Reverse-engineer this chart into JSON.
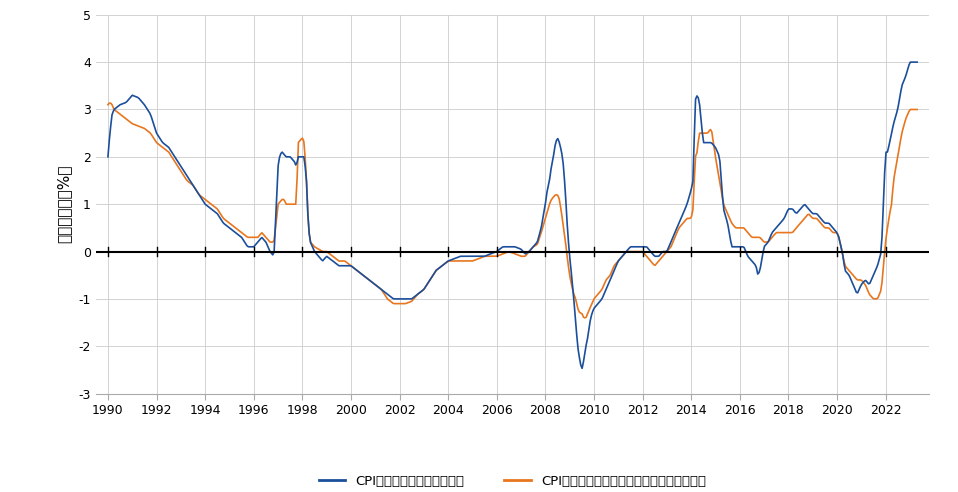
{
  "ylabel": "インフレ率（%）",
  "ylim": [
    -3,
    5
  ],
  "yticks": [
    -3,
    -2,
    -1,
    0,
    1,
    2,
    3,
    4,
    5
  ],
  "xticks": [
    1990,
    1992,
    1994,
    1996,
    1998,
    2000,
    2002,
    2004,
    2006,
    2008,
    2010,
    2012,
    2014,
    2016,
    2018,
    2020,
    2022
  ],
  "color_blue": "#1B4F9B",
  "color_orange": "#E8761E",
  "legend_blue": "CPI除く生鮮食品（前年比）",
  "legend_orange": "CPI除く生鮮食品及びエネルギー（前年比）",
  "background_color": "#FFFFFF",
  "grid_color": "#CCCCCC",
  "linewidth": 1.2,
  "ctrl_blue": [
    [
      1990.0,
      2.0
    ],
    [
      1990.08,
      2.5
    ],
    [
      1990.17,
      2.9
    ],
    [
      1990.25,
      3.0
    ],
    [
      1990.5,
      3.1
    ],
    [
      1990.75,
      3.15
    ],
    [
      1991.0,
      3.3
    ],
    [
      1991.25,
      3.25
    ],
    [
      1991.5,
      3.1
    ],
    [
      1991.75,
      2.9
    ],
    [
      1992.0,
      2.5
    ],
    [
      1992.25,
      2.3
    ],
    [
      1992.5,
      2.2
    ],
    [
      1992.75,
      2.0
    ],
    [
      1993.0,
      1.8
    ],
    [
      1993.25,
      1.6
    ],
    [
      1993.5,
      1.4
    ],
    [
      1993.75,
      1.2
    ],
    [
      1994.0,
      1.0
    ],
    [
      1994.25,
      0.9
    ],
    [
      1994.5,
      0.8
    ],
    [
      1994.75,
      0.6
    ],
    [
      1995.0,
      0.5
    ],
    [
      1995.25,
      0.4
    ],
    [
      1995.5,
      0.3
    ],
    [
      1995.75,
      0.1
    ],
    [
      1996.0,
      0.1
    ],
    [
      1996.17,
      0.2
    ],
    [
      1996.33,
      0.3
    ],
    [
      1996.5,
      0.2
    ],
    [
      1996.67,
      0.0
    ],
    [
      1996.83,
      -0.1
    ],
    [
      1997.0,
      1.8
    ],
    [
      1997.08,
      2.05
    ],
    [
      1997.17,
      2.1
    ],
    [
      1997.25,
      2.05
    ],
    [
      1997.33,
      2.0
    ],
    [
      1997.5,
      2.0
    ],
    [
      1997.67,
      1.9
    ],
    [
      1997.75,
      1.8
    ],
    [
      1997.83,
      2.0
    ],
    [
      1998.0,
      2.0
    ],
    [
      1998.08,
      2.0
    ],
    [
      1998.17,
      1.5
    ],
    [
      1998.25,
      0.5
    ],
    [
      1998.33,
      0.2
    ],
    [
      1998.5,
      0.0
    ],
    [
      1998.67,
      -0.1
    ],
    [
      1998.83,
      -0.2
    ],
    [
      1999.0,
      -0.1
    ],
    [
      1999.25,
      -0.2
    ],
    [
      1999.5,
      -0.3
    ],
    [
      1999.75,
      -0.3
    ],
    [
      2000.0,
      -0.3
    ],
    [
      2000.25,
      -0.4
    ],
    [
      2000.5,
      -0.5
    ],
    [
      2000.75,
      -0.6
    ],
    [
      2001.0,
      -0.7
    ],
    [
      2001.25,
      -0.8
    ],
    [
      2001.5,
      -0.9
    ],
    [
      2001.75,
      -1.0
    ],
    [
      2002.0,
      -1.0
    ],
    [
      2002.25,
      -1.0
    ],
    [
      2002.5,
      -1.0
    ],
    [
      2002.75,
      -0.9
    ],
    [
      2003.0,
      -0.8
    ],
    [
      2003.25,
      -0.6
    ],
    [
      2003.5,
      -0.4
    ],
    [
      2003.75,
      -0.3
    ],
    [
      2004.0,
      -0.2
    ],
    [
      2004.25,
      -0.15
    ],
    [
      2004.5,
      -0.1
    ],
    [
      2004.75,
      -0.1
    ],
    [
      2005.0,
      -0.1
    ],
    [
      2005.25,
      -0.1
    ],
    [
      2005.5,
      -0.1
    ],
    [
      2005.75,
      -0.05
    ],
    [
      2006.0,
      0.0
    ],
    [
      2006.25,
      0.1
    ],
    [
      2006.5,
      0.1
    ],
    [
      2006.75,
      0.1
    ],
    [
      2007.0,
      0.05
    ],
    [
      2007.17,
      -0.05
    ],
    [
      2007.33,
      0.0
    ],
    [
      2007.5,
      0.1
    ],
    [
      2007.67,
      0.2
    ],
    [
      2007.83,
      0.5
    ],
    [
      2008.0,
      1.0
    ],
    [
      2008.08,
      1.3
    ],
    [
      2008.17,
      1.5
    ],
    [
      2008.25,
      1.8
    ],
    [
      2008.33,
      2.0
    ],
    [
      2008.42,
      2.3
    ],
    [
      2008.5,
      2.4
    ],
    [
      2008.58,
      2.3
    ],
    [
      2008.67,
      2.1
    ],
    [
      2008.75,
      1.8
    ],
    [
      2008.83,
      1.2
    ],
    [
      2008.92,
      0.4
    ],
    [
      2009.0,
      -0.1
    ],
    [
      2009.08,
      -0.5
    ],
    [
      2009.17,
      -1.0
    ],
    [
      2009.25,
      -1.5
    ],
    [
      2009.33,
      -2.0
    ],
    [
      2009.42,
      -2.3
    ],
    [
      2009.5,
      -2.5
    ],
    [
      2009.58,
      -2.3
    ],
    [
      2009.67,
      -2.0
    ],
    [
      2009.75,
      -1.8
    ],
    [
      2009.83,
      -1.5
    ],
    [
      2009.92,
      -1.3
    ],
    [
      2010.0,
      -1.2
    ],
    [
      2010.17,
      -1.1
    ],
    [
      2010.33,
      -1.0
    ],
    [
      2010.5,
      -0.8
    ],
    [
      2010.67,
      -0.6
    ],
    [
      2010.83,
      -0.4
    ],
    [
      2011.0,
      -0.2
    ],
    [
      2011.17,
      -0.1
    ],
    [
      2011.33,
      0.0
    ],
    [
      2011.5,
      0.1
    ],
    [
      2011.67,
      0.1
    ],
    [
      2011.83,
      0.1
    ],
    [
      2012.0,
      0.1
    ],
    [
      2012.17,
      0.1
    ],
    [
      2012.33,
      0.0
    ],
    [
      2012.5,
      -0.1
    ],
    [
      2012.67,
      -0.1
    ],
    [
      2012.83,
      0.0
    ],
    [
      2013.0,
      0.0
    ],
    [
      2013.17,
      0.2
    ],
    [
      2013.33,
      0.4
    ],
    [
      2013.5,
      0.6
    ],
    [
      2013.67,
      0.8
    ],
    [
      2013.83,
      1.0
    ],
    [
      2014.0,
      1.3
    ],
    [
      2014.08,
      1.5
    ],
    [
      2014.17,
      3.2
    ],
    [
      2014.25,
      3.3
    ],
    [
      2014.33,
      3.2
    ],
    [
      2014.5,
      2.3
    ],
    [
      2014.67,
      2.3
    ],
    [
      2014.83,
      2.3
    ],
    [
      2015.0,
      2.2
    ],
    [
      2015.17,
      2.0
    ],
    [
      2015.33,
      0.9
    ],
    [
      2015.5,
      0.6
    ],
    [
      2015.67,
      0.1
    ],
    [
      2015.83,
      0.1
    ],
    [
      2016.0,
      0.1
    ],
    [
      2016.17,
      0.1
    ],
    [
      2016.33,
      -0.1
    ],
    [
      2016.5,
      -0.2
    ],
    [
      2016.67,
      -0.3
    ],
    [
      2016.75,
      -0.5
    ],
    [
      2016.83,
      -0.4
    ],
    [
      2017.0,
      0.1
    ],
    [
      2017.17,
      0.2
    ],
    [
      2017.33,
      0.4
    ],
    [
      2017.5,
      0.5
    ],
    [
      2017.67,
      0.6
    ],
    [
      2017.83,
      0.7
    ],
    [
      2018.0,
      0.9
    ],
    [
      2018.17,
      0.9
    ],
    [
      2018.33,
      0.8
    ],
    [
      2018.5,
      0.9
    ],
    [
      2018.67,
      1.0
    ],
    [
      2018.83,
      0.9
    ],
    [
      2019.0,
      0.8
    ],
    [
      2019.17,
      0.8
    ],
    [
      2019.33,
      0.7
    ],
    [
      2019.5,
      0.6
    ],
    [
      2019.67,
      0.6
    ],
    [
      2019.83,
      0.5
    ],
    [
      2020.0,
      0.4
    ],
    [
      2020.08,
      0.3
    ],
    [
      2020.17,
      0.1
    ],
    [
      2020.25,
      -0.1
    ],
    [
      2020.33,
      -0.4
    ],
    [
      2020.5,
      -0.5
    ],
    [
      2020.67,
      -0.7
    ],
    [
      2020.83,
      -0.9
    ],
    [
      2021.0,
      -0.7
    ],
    [
      2021.17,
      -0.6
    ],
    [
      2021.33,
      -0.7
    ],
    [
      2021.5,
      -0.5
    ],
    [
      2021.67,
      -0.3
    ],
    [
      2021.83,
      0.0
    ],
    [
      2022.0,
      2.1
    ],
    [
      2022.08,
      2.1
    ],
    [
      2022.17,
      2.3
    ],
    [
      2022.25,
      2.5
    ],
    [
      2022.33,
      2.7
    ],
    [
      2022.5,
      3.0
    ],
    [
      2022.67,
      3.5
    ],
    [
      2022.83,
      3.7
    ],
    [
      2023.0,
      4.0
    ],
    [
      2023.17,
      4.0
    ],
    [
      2023.25,
      4.0
    ]
  ],
  "ctrl_orange": [
    [
      1990.0,
      3.1
    ],
    [
      1990.08,
      3.15
    ],
    [
      1990.17,
      3.1
    ],
    [
      1990.25,
      3.0
    ],
    [
      1990.5,
      2.9
    ],
    [
      1990.75,
      2.8
    ],
    [
      1991.0,
      2.7
    ],
    [
      1991.25,
      2.65
    ],
    [
      1991.5,
      2.6
    ],
    [
      1991.75,
      2.5
    ],
    [
      1992.0,
      2.3
    ],
    [
      1992.25,
      2.2
    ],
    [
      1992.5,
      2.1
    ],
    [
      1992.75,
      1.9
    ],
    [
      1993.0,
      1.7
    ],
    [
      1993.25,
      1.5
    ],
    [
      1993.5,
      1.4
    ],
    [
      1993.75,
      1.2
    ],
    [
      1994.0,
      1.1
    ],
    [
      1994.25,
      1.0
    ],
    [
      1994.5,
      0.9
    ],
    [
      1994.75,
      0.7
    ],
    [
      1995.0,
      0.6
    ],
    [
      1995.25,
      0.5
    ],
    [
      1995.5,
      0.4
    ],
    [
      1995.75,
      0.3
    ],
    [
      1996.0,
      0.3
    ],
    [
      1996.17,
      0.3
    ],
    [
      1996.33,
      0.4
    ],
    [
      1996.5,
      0.3
    ],
    [
      1996.67,
      0.2
    ],
    [
      1996.83,
      0.2
    ],
    [
      1997.0,
      1.0
    ],
    [
      1997.08,
      1.05
    ],
    [
      1997.17,
      1.1
    ],
    [
      1997.25,
      1.1
    ],
    [
      1997.33,
      1.0
    ],
    [
      1997.5,
      1.0
    ],
    [
      1997.67,
      1.0
    ],
    [
      1997.75,
      1.0
    ],
    [
      1997.83,
      2.3
    ],
    [
      1998.0,
      2.4
    ],
    [
      1998.08,
      2.3
    ],
    [
      1998.17,
      1.5
    ],
    [
      1998.25,
      0.5
    ],
    [
      1998.33,
      0.2
    ],
    [
      1998.5,
      0.1
    ],
    [
      1998.67,
      0.05
    ],
    [
      1998.83,
      0.0
    ],
    [
      1999.0,
      0.0
    ],
    [
      1999.25,
      -0.1
    ],
    [
      1999.5,
      -0.2
    ],
    [
      1999.75,
      -0.2
    ],
    [
      2000.0,
      -0.3
    ],
    [
      2000.25,
      -0.4
    ],
    [
      2000.5,
      -0.5
    ],
    [
      2000.75,
      -0.6
    ],
    [
      2001.0,
      -0.7
    ],
    [
      2001.25,
      -0.8
    ],
    [
      2001.5,
      -1.0
    ],
    [
      2001.75,
      -1.1
    ],
    [
      2002.0,
      -1.1
    ],
    [
      2002.25,
      -1.1
    ],
    [
      2002.5,
      -1.05
    ],
    [
      2002.75,
      -0.9
    ],
    [
      2003.0,
      -0.8
    ],
    [
      2003.25,
      -0.6
    ],
    [
      2003.5,
      -0.4
    ],
    [
      2003.75,
      -0.3
    ],
    [
      2004.0,
      -0.2
    ],
    [
      2004.25,
      -0.2
    ],
    [
      2004.5,
      -0.2
    ],
    [
      2004.75,
      -0.2
    ],
    [
      2005.0,
      -0.2
    ],
    [
      2005.25,
      -0.15
    ],
    [
      2005.5,
      -0.1
    ],
    [
      2005.75,
      -0.1
    ],
    [
      2006.0,
      -0.1
    ],
    [
      2006.25,
      -0.05
    ],
    [
      2006.5,
      0.0
    ],
    [
      2006.75,
      -0.05
    ],
    [
      2007.0,
      -0.1
    ],
    [
      2007.17,
      -0.1
    ],
    [
      2007.33,
      0.0
    ],
    [
      2007.5,
      0.1
    ],
    [
      2007.67,
      0.15
    ],
    [
      2007.83,
      0.4
    ],
    [
      2008.0,
      0.7
    ],
    [
      2008.08,
      0.85
    ],
    [
      2008.17,
      1.0
    ],
    [
      2008.25,
      1.1
    ],
    [
      2008.33,
      1.15
    ],
    [
      2008.42,
      1.2
    ],
    [
      2008.5,
      1.2
    ],
    [
      2008.58,
      1.1
    ],
    [
      2008.67,
      0.8
    ],
    [
      2008.75,
      0.5
    ],
    [
      2008.83,
      0.2
    ],
    [
      2008.92,
      -0.2
    ],
    [
      2009.0,
      -0.5
    ],
    [
      2009.08,
      -0.7
    ],
    [
      2009.17,
      -0.9
    ],
    [
      2009.25,
      -1.0
    ],
    [
      2009.33,
      -1.2
    ],
    [
      2009.42,
      -1.3
    ],
    [
      2009.5,
      -1.3
    ],
    [
      2009.58,
      -1.4
    ],
    [
      2009.67,
      -1.4
    ],
    [
      2009.75,
      -1.3
    ],
    [
      2009.83,
      -1.2
    ],
    [
      2009.92,
      -1.1
    ],
    [
      2010.0,
      -1.0
    ],
    [
      2010.17,
      -0.9
    ],
    [
      2010.33,
      -0.8
    ],
    [
      2010.5,
      -0.6
    ],
    [
      2010.67,
      -0.5
    ],
    [
      2010.83,
      -0.3
    ],
    [
      2011.0,
      -0.2
    ],
    [
      2011.17,
      -0.1
    ],
    [
      2011.33,
      0.0
    ],
    [
      2011.5,
      0.0
    ],
    [
      2011.67,
      0.0
    ],
    [
      2011.83,
      0.0
    ],
    [
      2012.0,
      0.0
    ],
    [
      2012.17,
      -0.1
    ],
    [
      2012.33,
      -0.2
    ],
    [
      2012.5,
      -0.3
    ],
    [
      2012.67,
      -0.2
    ],
    [
      2012.83,
      -0.1
    ],
    [
      2013.0,
      0.0
    ],
    [
      2013.17,
      0.1
    ],
    [
      2013.33,
      0.3
    ],
    [
      2013.5,
      0.5
    ],
    [
      2013.67,
      0.6
    ],
    [
      2013.83,
      0.7
    ],
    [
      2014.0,
      0.7
    ],
    [
      2014.08,
      0.9
    ],
    [
      2014.17,
      2.0
    ],
    [
      2014.25,
      2.1
    ],
    [
      2014.33,
      2.5
    ],
    [
      2014.5,
      2.5
    ],
    [
      2014.67,
      2.5
    ],
    [
      2014.83,
      2.6
    ],
    [
      2015.0,
      2.0
    ],
    [
      2015.17,
      1.5
    ],
    [
      2015.33,
      1.0
    ],
    [
      2015.5,
      0.8
    ],
    [
      2015.67,
      0.6
    ],
    [
      2015.83,
      0.5
    ],
    [
      2016.0,
      0.5
    ],
    [
      2016.17,
      0.5
    ],
    [
      2016.33,
      0.4
    ],
    [
      2016.5,
      0.3
    ],
    [
      2016.67,
      0.3
    ],
    [
      2016.75,
      0.3
    ],
    [
      2016.83,
      0.3
    ],
    [
      2017.0,
      0.2
    ],
    [
      2017.17,
      0.2
    ],
    [
      2017.33,
      0.3
    ],
    [
      2017.5,
      0.4
    ],
    [
      2017.67,
      0.4
    ],
    [
      2017.83,
      0.4
    ],
    [
      2018.0,
      0.4
    ],
    [
      2018.17,
      0.4
    ],
    [
      2018.33,
      0.5
    ],
    [
      2018.5,
      0.6
    ],
    [
      2018.67,
      0.7
    ],
    [
      2018.83,
      0.8
    ],
    [
      2019.0,
      0.7
    ],
    [
      2019.17,
      0.7
    ],
    [
      2019.33,
      0.6
    ],
    [
      2019.5,
      0.5
    ],
    [
      2019.67,
      0.5
    ],
    [
      2019.83,
      0.4
    ],
    [
      2020.0,
      0.4
    ],
    [
      2020.08,
      0.3
    ],
    [
      2020.17,
      0.1
    ],
    [
      2020.25,
      -0.1
    ],
    [
      2020.33,
      -0.3
    ],
    [
      2020.5,
      -0.4
    ],
    [
      2020.67,
      -0.5
    ],
    [
      2020.83,
      -0.6
    ],
    [
      2021.0,
      -0.6
    ],
    [
      2021.17,
      -0.7
    ],
    [
      2021.33,
      -0.9
    ],
    [
      2021.5,
      -1.0
    ],
    [
      2021.67,
      -1.0
    ],
    [
      2021.83,
      -0.8
    ],
    [
      2022.0,
      0.2
    ],
    [
      2022.08,
      0.5
    ],
    [
      2022.17,
      0.8
    ],
    [
      2022.25,
      1.0
    ],
    [
      2022.33,
      1.5
    ],
    [
      2022.5,
      2.0
    ],
    [
      2022.67,
      2.5
    ],
    [
      2022.83,
      2.8
    ],
    [
      2023.0,
      3.0
    ],
    [
      2023.17,
      3.0
    ],
    [
      2023.25,
      3.0
    ]
  ]
}
